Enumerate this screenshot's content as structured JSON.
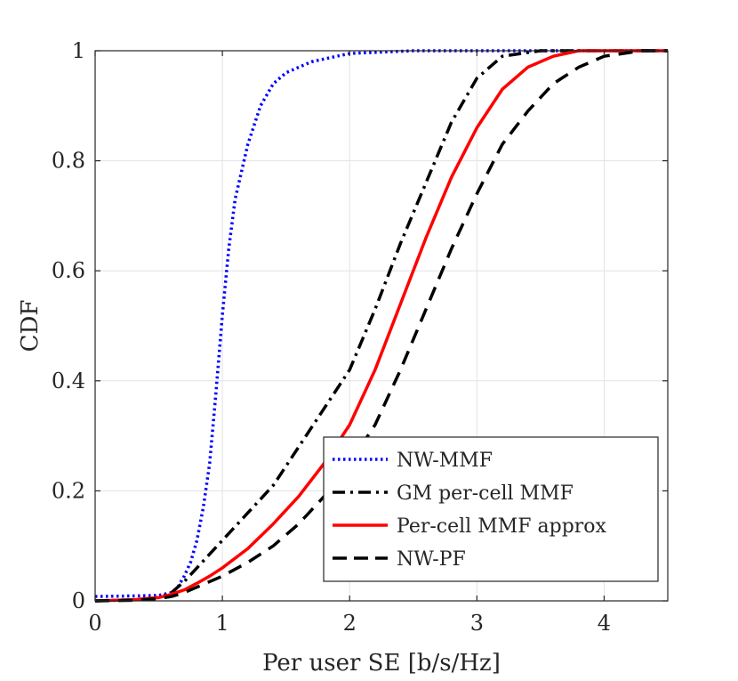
{
  "chart_data": {
    "type": "line",
    "title": "",
    "xlabel": "Per user SE [b/s/Hz]",
    "ylabel": "CDF",
    "xlim": [
      0,
      4.5
    ],
    "ylim": [
      0,
      1
    ],
    "xticks": [
      0,
      1,
      2,
      3,
      4
    ],
    "yticks": [
      0,
      0.2,
      0.4,
      0.6,
      0.8,
      1
    ],
    "xtick_labels": [
      "0",
      "1",
      "2",
      "3",
      "4"
    ],
    "ytick_labels": [
      "0",
      "0.2",
      "0.4",
      "0.6",
      "0.8",
      "1"
    ],
    "grid": true,
    "legend_position": "bottom-right",
    "series": [
      {
        "name": "NW-MMF",
        "color": "#0000ff",
        "style": "dotted",
        "points": [
          [
            0,
            0.008
          ],
          [
            0.3,
            0.009
          ],
          [
            0.5,
            0.01
          ],
          [
            0.6,
            0.015
          ],
          [
            0.65,
            0.025
          ],
          [
            0.7,
            0.045
          ],
          [
            0.75,
            0.07
          ],
          [
            0.8,
            0.11
          ],
          [
            0.85,
            0.17
          ],
          [
            0.9,
            0.25
          ],
          [
            0.95,
            0.38
          ],
          [
            1.0,
            0.52
          ],
          [
            1.05,
            0.64
          ],
          [
            1.1,
            0.73
          ],
          [
            1.15,
            0.78
          ],
          [
            1.2,
            0.83
          ],
          [
            1.3,
            0.9
          ],
          [
            1.4,
            0.94
          ],
          [
            1.5,
            0.96
          ],
          [
            1.7,
            0.98
          ],
          [
            2.0,
            0.995
          ],
          [
            2.5,
            1.0
          ],
          [
            4.5,
            1.0
          ]
        ]
      },
      {
        "name": "GM per-cell MMF",
        "color": "#000000",
        "style": "dashdot",
        "points": [
          [
            0,
            0.0
          ],
          [
            0.3,
            0.002
          ],
          [
            0.5,
            0.006
          ],
          [
            0.6,
            0.015
          ],
          [
            0.7,
            0.035
          ],
          [
            0.8,
            0.06
          ],
          [
            0.9,
            0.085
          ],
          [
            1.0,
            0.11
          ],
          [
            1.2,
            0.16
          ],
          [
            1.4,
            0.21
          ],
          [
            1.6,
            0.28
          ],
          [
            1.8,
            0.35
          ],
          [
            2.0,
            0.42
          ],
          [
            2.2,
            0.53
          ],
          [
            2.4,
            0.65
          ],
          [
            2.6,
            0.76
          ],
          [
            2.8,
            0.87
          ],
          [
            3.0,
            0.95
          ],
          [
            3.2,
            0.99
          ],
          [
            3.5,
            1.0
          ],
          [
            4.5,
            1.0
          ]
        ]
      },
      {
        "name": "Per-cell MMF approx",
        "color": "#ff0000",
        "style": "solid",
        "points": [
          [
            0,
            0.0
          ],
          [
            0.3,
            0.002
          ],
          [
            0.5,
            0.006
          ],
          [
            0.6,
            0.012
          ],
          [
            0.7,
            0.02
          ],
          [
            0.8,
            0.032
          ],
          [
            0.9,
            0.045
          ],
          [
            1.0,
            0.06
          ],
          [
            1.2,
            0.095
          ],
          [
            1.4,
            0.14
          ],
          [
            1.6,
            0.19
          ],
          [
            1.8,
            0.25
          ],
          [
            2.0,
            0.32
          ],
          [
            2.2,
            0.42
          ],
          [
            2.4,
            0.54
          ],
          [
            2.6,
            0.66
          ],
          [
            2.8,
            0.77
          ],
          [
            3.0,
            0.86
          ],
          [
            3.2,
            0.93
          ],
          [
            3.4,
            0.97
          ],
          [
            3.6,
            0.99
          ],
          [
            3.8,
            1.0
          ],
          [
            4.5,
            1.0
          ]
        ]
      },
      {
        "name": "NW-PF",
        "color": "#000000",
        "style": "dashed",
        "points": [
          [
            0,
            0.0
          ],
          [
            0.3,
            0.001
          ],
          [
            0.5,
            0.004
          ],
          [
            0.6,
            0.008
          ],
          [
            0.7,
            0.015
          ],
          [
            0.8,
            0.025
          ],
          [
            1.0,
            0.045
          ],
          [
            1.2,
            0.07
          ],
          [
            1.4,
            0.1
          ],
          [
            1.6,
            0.14
          ],
          [
            1.8,
            0.19
          ],
          [
            2.0,
            0.25
          ],
          [
            2.2,
            0.32
          ],
          [
            2.4,
            0.42
          ],
          [
            2.6,
            0.53
          ],
          [
            2.8,
            0.64
          ],
          [
            3.0,
            0.74
          ],
          [
            3.2,
            0.83
          ],
          [
            3.4,
            0.89
          ],
          [
            3.6,
            0.94
          ],
          [
            3.8,
            0.97
          ],
          [
            4.0,
            0.99
          ],
          [
            4.3,
            1.0
          ],
          [
            4.5,
            1.0
          ]
        ]
      }
    ]
  }
}
